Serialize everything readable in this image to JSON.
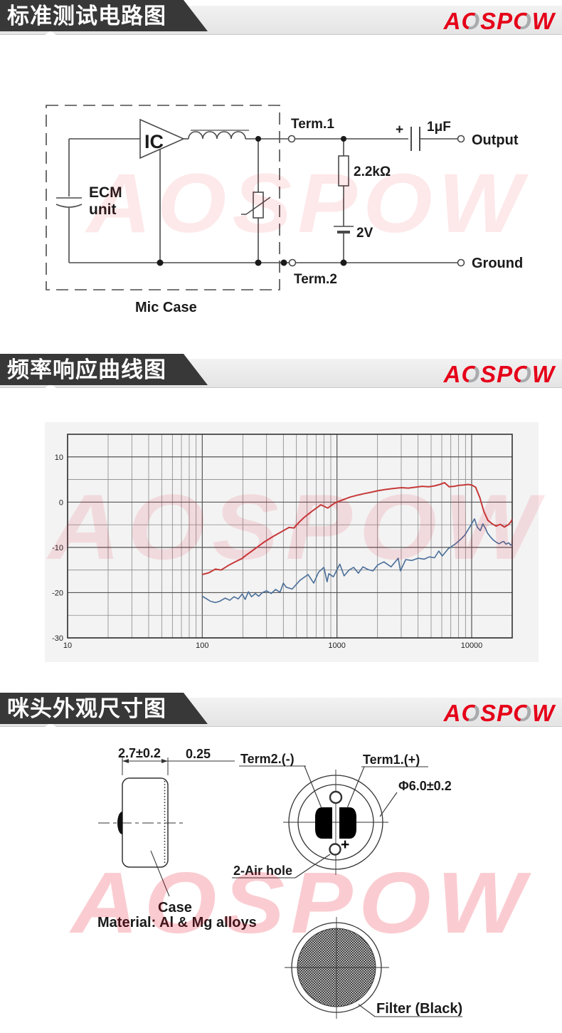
{
  "brand": {
    "watermark_text": "AOSPOW",
    "logo_letters": [
      "A",
      "O",
      "S",
      "P",
      "O",
      "W"
    ],
    "logo_red": "#e50019",
    "logo_gray": "#a9abad"
  },
  "sections": [
    {
      "id": "circuit",
      "title": "标准测试电路图"
    },
    {
      "id": "frequency",
      "title": "频率响应曲线图"
    },
    {
      "id": "dimensions",
      "title": "咪头外观尺寸图"
    }
  ],
  "circuit": {
    "labels": {
      "ic": "IC",
      "ecm_line1": "ECM",
      "ecm_line2": "unit",
      "mic_case": "Mic Case",
      "term1": "Term.1",
      "term2": "Term.2",
      "resistor": "2.2kΩ",
      "voltage": "2V",
      "cap_plus": "+",
      "capacitor": "1μF",
      "output": "Output",
      "ground": "Ground"
    }
  },
  "chart_data": {
    "type": "line",
    "x_scale": "log",
    "x_range": [
      10,
      20000
    ],
    "y_range": [
      -30,
      15
    ],
    "x_ticks": [
      10,
      100,
      1000,
      10000
    ],
    "y_ticks": [
      10,
      0,
      -10,
      -20,
      -30
    ],
    "grid": true,
    "grid_minor_db_step": 5,
    "legend_position": "none",
    "series": [
      {
        "name": "response-red",
        "color": "#c63a3a",
        "width": 2,
        "points": [
          [
            100,
            -16
          ],
          [
            112,
            -15.6
          ],
          [
            125,
            -14.8
          ],
          [
            138,
            -15
          ],
          [
            158,
            -13.9
          ],
          [
            178,
            -13.1
          ],
          [
            196,
            -12.5
          ],
          [
            210,
            -11.8
          ],
          [
            226,
            -11.1
          ],
          [
            252,
            -10.1
          ],
          [
            285,
            -8.9
          ],
          [
            335,
            -7.6
          ],
          [
            390,
            -6.5
          ],
          [
            440,
            -5.6
          ],
          [
            480,
            -5.7
          ],
          [
            525,
            -4.4
          ],
          [
            570,
            -3.4
          ],
          [
            615,
            -2.6
          ],
          [
            660,
            -1.9
          ],
          [
            705,
            -1.3
          ],
          [
            760,
            -0.6
          ],
          [
            800,
            -0.9
          ],
          [
            855,
            -1.3
          ],
          [
            910,
            -0.7
          ],
          [
            965,
            -0.2
          ],
          [
            1100,
            0.5
          ],
          [
            1250,
            1.1
          ],
          [
            1400,
            1.5
          ],
          [
            1600,
            1.9
          ],
          [
            1800,
            2.2
          ],
          [
            2000,
            2.5
          ],
          [
            2300,
            2.8
          ],
          [
            2600,
            3
          ],
          [
            3000,
            3.2
          ],
          [
            3400,
            3.1
          ],
          [
            3800,
            3.3
          ],
          [
            4300,
            3.5
          ],
          [
            4800,
            3.4
          ],
          [
            5300,
            3.6
          ],
          [
            5800,
            3.9
          ],
          [
            6300,
            4.3
          ],
          [
            6800,
            3.4
          ],
          [
            7400,
            3.5
          ],
          [
            8000,
            3.7
          ],
          [
            8700,
            3.8
          ],
          [
            9400,
            3.9
          ],
          [
            10000,
            3.8
          ],
          [
            10700,
            3.3
          ],
          [
            11500,
            1
          ],
          [
            12300,
            -2
          ],
          [
            13200,
            -4
          ],
          [
            14200,
            -4.8
          ],
          [
            15200,
            -5.3
          ],
          [
            16300,
            -4.9
          ],
          [
            17500,
            -5.5
          ],
          [
            18700,
            -5
          ],
          [
            19500,
            -4.4
          ],
          [
            20000,
            -3.8
          ]
        ]
      },
      {
        "name": "response-blue",
        "color": "#4a6e99",
        "width": 1.6,
        "points": [
          [
            100,
            -20.8
          ],
          [
            108,
            -21.4
          ],
          [
            115,
            -21.9
          ],
          [
            125,
            -22.2
          ],
          [
            135,
            -21.9
          ],
          [
            148,
            -21.2
          ],
          [
            160,
            -21.7
          ],
          [
            172,
            -20.9
          ],
          [
            185,
            -21.4
          ],
          [
            198,
            -20.3
          ],
          [
            208,
            -21.5
          ],
          [
            220,
            -19.8
          ],
          [
            232,
            -20.9
          ],
          [
            248,
            -20.2
          ],
          [
            262,
            -20.8
          ],
          [
            280,
            -20
          ],
          [
            300,
            -19.6
          ],
          [
            325,
            -20.2
          ],
          [
            350,
            -19.3
          ],
          [
            378,
            -19.9
          ],
          [
            400,
            -17.9
          ],
          [
            420,
            -18.8
          ],
          [
            465,
            -19.2
          ],
          [
            530,
            -17.3
          ],
          [
            610,
            -16
          ],
          [
            672,
            -17.9
          ],
          [
            730,
            -15.5
          ],
          [
            800,
            -14.4
          ],
          [
            845,
            -17.6
          ],
          [
            870,
            -15.8
          ],
          [
            940,
            -16.5
          ],
          [
            1050,
            -13.7
          ],
          [
            1130,
            -16.3
          ],
          [
            1230,
            -15
          ],
          [
            1330,
            -14.4
          ],
          [
            1440,
            -15.7
          ],
          [
            1560,
            -14.3
          ],
          [
            1700,
            -14.9
          ],
          [
            1850,
            -15.2
          ],
          [
            2000,
            -13.9
          ],
          [
            2230,
            -13.2
          ],
          [
            2520,
            -14.3
          ],
          [
            2850,
            -12.4
          ],
          [
            2960,
            -15.2
          ],
          [
            3240,
            -12.7
          ],
          [
            3600,
            -12.9
          ],
          [
            4000,
            -12.4
          ],
          [
            4450,
            -12.6
          ],
          [
            4850,
            -12.1
          ],
          [
            5300,
            -12.3
          ],
          [
            5700,
            -10.8
          ],
          [
            6050,
            -11.9
          ],
          [
            6700,
            -10.3
          ],
          [
            7600,
            -9.2
          ],
          [
            8300,
            -8.2
          ],
          [
            8900,
            -7.3
          ],
          [
            9500,
            -5.9
          ],
          [
            10000,
            -4.8
          ],
          [
            10500,
            -3.7
          ],
          [
            11000,
            -5.5
          ],
          [
            11600,
            -6.3
          ],
          [
            12100,
            -4.8
          ],
          [
            12700,
            -5.9
          ],
          [
            13100,
            -6.8
          ],
          [
            13800,
            -7.7
          ],
          [
            14500,
            -8.4
          ],
          [
            15300,
            -8.9
          ],
          [
            16000,
            -9.2
          ],
          [
            16800,
            -8.8
          ],
          [
            17300,
            -8.7
          ],
          [
            18000,
            -9.3
          ],
          [
            18800,
            -9
          ],
          [
            19500,
            -9.5
          ],
          [
            20000,
            -9.2
          ]
        ]
      }
    ]
  },
  "dimensions": {
    "labels": {
      "width_dim": "2.7±0.2",
      "pcb_dim": "0.25",
      "term2": "Term2.(-)",
      "term1": "Term1.(+)",
      "diameter": "Φ6.0±0.2",
      "air_hole": "2-Air hole",
      "case": "Case",
      "material": "Material: Al & Mg alloys",
      "plus": "+",
      "filter": "Filter (Black)"
    }
  }
}
